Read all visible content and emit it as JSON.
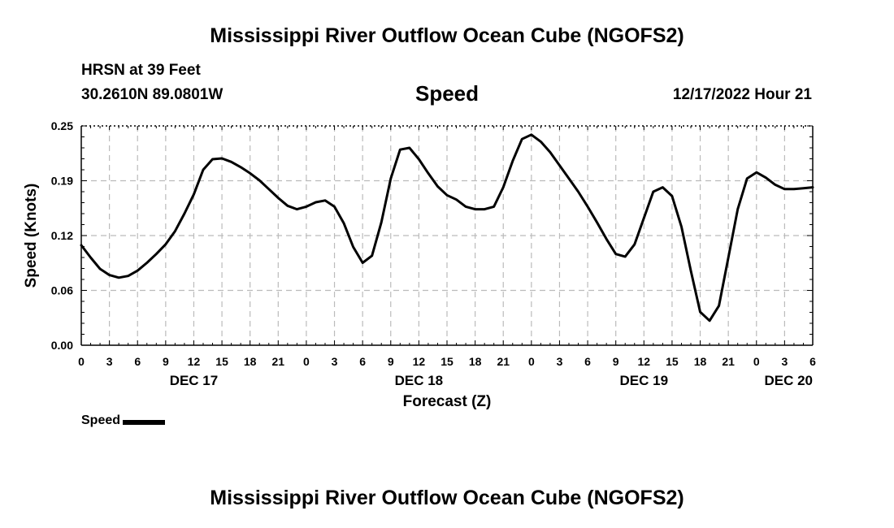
{
  "header": {
    "title": "Mississippi River Outflow Ocean Cube (NGOFS2)",
    "station": "HRSN at 39 Feet",
    "coords": "30.2610N  89.0801W",
    "chart_title": "Speed",
    "datetime": "12/17/2022 Hour 21"
  },
  "legend": {
    "label": "Speed"
  },
  "footer": {
    "title": "Mississippi River Outflow Ocean Cube (NGOFS2)"
  },
  "colors": {
    "line": "#000000",
    "grid": "#bbbbbb",
    "background": "#ffffff"
  },
  "chart_data": {
    "type": "line",
    "title": "Speed",
    "xlabel": "Forecast (Z)",
    "ylabel": "Speed (Knots)",
    "ylim": [
      0,
      0.25
    ],
    "y_ticks": [
      "0.00",
      "0.06",
      "0.12",
      "0.19",
      "0.25"
    ],
    "x_hours_range": [
      0,
      78
    ],
    "x_tick_labels": [
      "0",
      "3",
      "6",
      "9",
      "12",
      "15",
      "18",
      "21",
      "0",
      "3",
      "6",
      "9",
      "12",
      "15",
      "18",
      "21",
      "0",
      "3",
      "6",
      "9",
      "12",
      "15",
      "18",
      "21",
      "0",
      "3",
      "6"
    ],
    "x_day_labels": [
      {
        "label": "DEC 17",
        "hour": 12
      },
      {
        "label": "DEC 18",
        "hour": 36
      },
      {
        "label": "DEC 19",
        "hour": 60
      },
      {
        "label": "DEC 20",
        "hour": 78
      }
    ],
    "grid": true,
    "series": [
      {
        "name": "Speed",
        "x": [
          0,
          1,
          2,
          3,
          4,
          5,
          6,
          7,
          8,
          9,
          10,
          11,
          12,
          13,
          14,
          15,
          16,
          17,
          18,
          19,
          20,
          21,
          22,
          23,
          24,
          25,
          26,
          27,
          28,
          29,
          30,
          31,
          32,
          33,
          34,
          35,
          36,
          37,
          38,
          39,
          40,
          41,
          42,
          43,
          44,
          45,
          46,
          47,
          48,
          49,
          50,
          51,
          52,
          53,
          54,
          55,
          56,
          57,
          58,
          59,
          60,
          61,
          62,
          63,
          64,
          65,
          66,
          67,
          68,
          69,
          70,
          71,
          72,
          73,
          74,
          75,
          76,
          77,
          78
        ],
        "values": [
          0.114,
          0.1,
          0.087,
          0.08,
          0.077,
          0.079,
          0.085,
          0.094,
          0.104,
          0.115,
          0.13,
          0.15,
          0.172,
          0.2,
          0.212,
          0.213,
          0.209,
          0.203,
          0.196,
          0.188,
          0.178,
          0.168,
          0.159,
          0.155,
          0.158,
          0.163,
          0.165,
          0.158,
          0.139,
          0.112,
          0.094,
          0.102,
          0.14,
          0.19,
          0.223,
          0.225,
          0.212,
          0.196,
          0.181,
          0.171,
          0.166,
          0.158,
          0.155,
          0.155,
          0.158,
          0.18,
          0.21,
          0.235,
          0.24,
          0.232,
          0.22,
          0.205,
          0.19,
          0.175,
          0.158,
          0.14,
          0.121,
          0.104,
          0.101,
          0.115,
          0.145,
          0.175,
          0.18,
          0.17,
          0.135,
          0.085,
          0.038,
          0.028,
          0.045,
          0.1,
          0.155,
          0.19,
          0.197,
          0.191,
          0.183,
          0.178,
          0.178,
          0.179,
          0.18
        ]
      }
    ]
  }
}
